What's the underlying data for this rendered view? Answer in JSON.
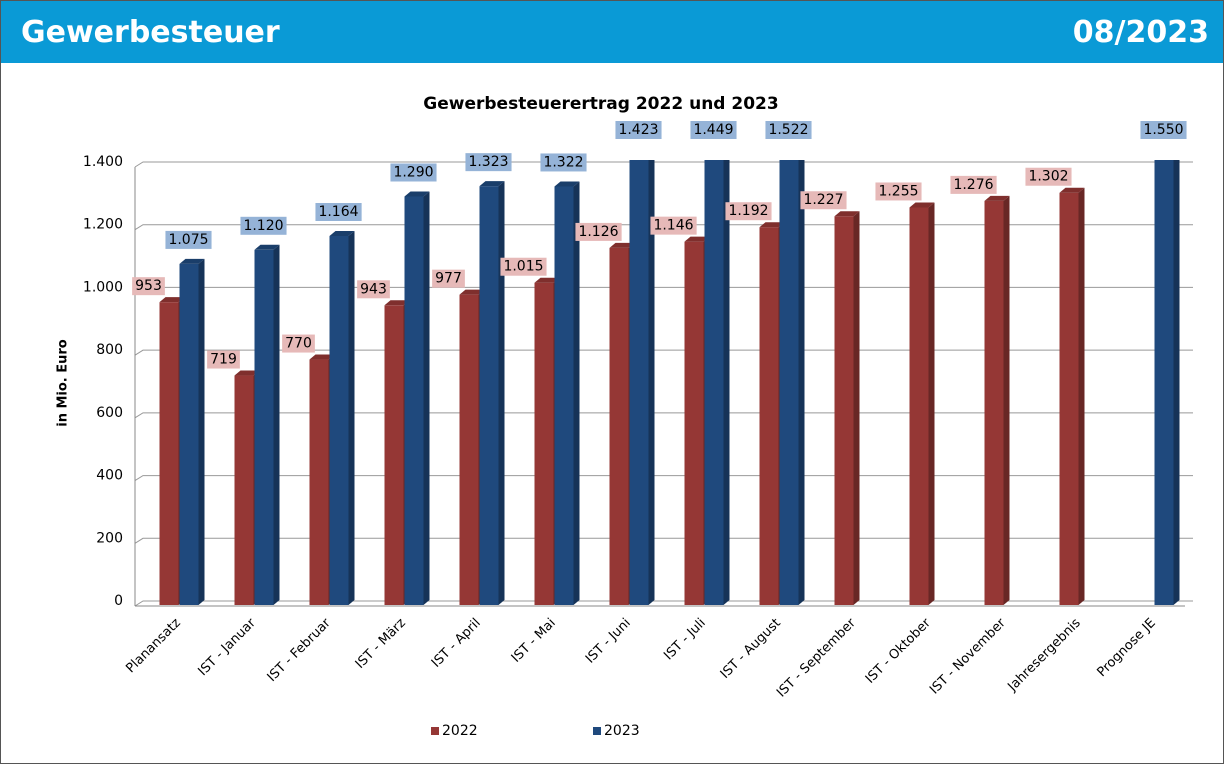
{
  "header": {
    "title": "Gewerbesteuer",
    "date": "08/2023"
  },
  "chart_data": {
    "type": "bar",
    "title": "Gewerbesteuerertrag 2022 und 2023",
    "y_label": "in Mio. Euro",
    "categories": [
      "Planansatz",
      "IST - Januar",
      "IST - Februar",
      "IST - März",
      "IST - April",
      "IST - Mai",
      "IST - Juni",
      "IST - Juli",
      "IST - August",
      "IST - September",
      "IST - Oktober",
      "IST - November",
      "Jahresergebnis",
      "Prognose JE"
    ],
    "series": [
      {
        "name": "2022",
        "color": "#953735",
        "label_color": "#e6b9b8",
        "values": [
          953,
          719,
          770,
          943,
          977,
          1015,
          1126,
          1146,
          1192,
          1227,
          1255,
          1276,
          1302,
          null
        ],
        "value_labels": [
          "953",
          "719",
          "770",
          "943",
          "977",
          "1.015",
          "1.126",
          "1.146",
          "1.192",
          "1.227",
          "1.255",
          "1.276",
          "1.302",
          null
        ]
      },
      {
        "name": "2023",
        "color": "#1f497d",
        "label_color": "#95b3d7",
        "values": [
          1075,
          1120,
          1164,
          1290,
          1323,
          1322,
          1423,
          1449,
          1522,
          null,
          null,
          null,
          null,
          1550
        ],
        "value_labels": [
          "1.075",
          "1.120",
          "1.164",
          "1.290",
          "1.323",
          "1.322",
          "1.423",
          "1.449",
          "1.522",
          null,
          null,
          null,
          null,
          "1.550"
        ]
      }
    ],
    "ylim": [
      0,
      1400
    ],
    "yticks": [
      0,
      200,
      400,
      600,
      800,
      {
        "value": 1000,
        "label": "1.000"
      },
      {
        "value": 1200,
        "label": "1.200"
      },
      {
        "value": 1400,
        "label": "1.400"
      }
    ],
    "grid": true,
    "legend": "bottom"
  }
}
